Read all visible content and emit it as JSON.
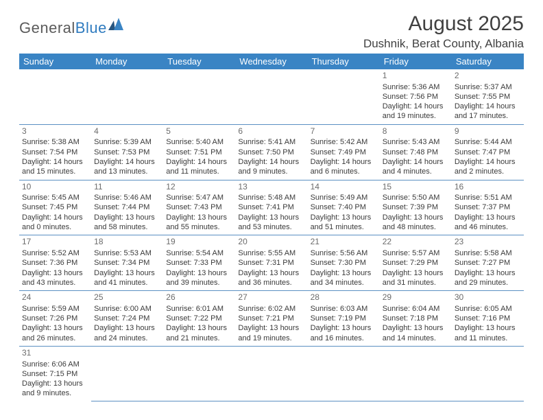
{
  "logo": {
    "text_gray": "General",
    "text_blue": "Blue"
  },
  "title": "August 2025",
  "subtitle": "Dushnik, Berat County, Albania",
  "colors": {
    "header_bg": "#3a84c4",
    "header_text": "#ffffff",
    "row_border": "#5a8fc2",
    "text": "#3a3a3a",
    "title_text": "#404040",
    "logo_gray": "#5b5b5b",
    "logo_blue": "#2f7bbf",
    "background": "#ffffff"
  },
  "typography": {
    "title_fontsize": 30,
    "subtitle_fontsize": 17,
    "header_fontsize": 13,
    "cell_fontsize": 11,
    "daynum_fontsize": 12,
    "logo_fontsize": 22
  },
  "day_headers": [
    "Sunday",
    "Monday",
    "Tuesday",
    "Wednesday",
    "Thursday",
    "Friday",
    "Saturday"
  ],
  "weeks": [
    [
      null,
      null,
      null,
      null,
      null,
      {
        "n": "1",
        "sunrise": "5:36 AM",
        "sunset": "7:56 PM",
        "daylight": "14 hours and 19 minutes."
      },
      {
        "n": "2",
        "sunrise": "5:37 AM",
        "sunset": "7:55 PM",
        "daylight": "14 hours and 17 minutes."
      }
    ],
    [
      {
        "n": "3",
        "sunrise": "5:38 AM",
        "sunset": "7:54 PM",
        "daylight": "14 hours and 15 minutes."
      },
      {
        "n": "4",
        "sunrise": "5:39 AM",
        "sunset": "7:53 PM",
        "daylight": "14 hours and 13 minutes."
      },
      {
        "n": "5",
        "sunrise": "5:40 AM",
        "sunset": "7:51 PM",
        "daylight": "14 hours and 11 minutes."
      },
      {
        "n": "6",
        "sunrise": "5:41 AM",
        "sunset": "7:50 PM",
        "daylight": "14 hours and 9 minutes."
      },
      {
        "n": "7",
        "sunrise": "5:42 AM",
        "sunset": "7:49 PM",
        "daylight": "14 hours and 6 minutes."
      },
      {
        "n": "8",
        "sunrise": "5:43 AM",
        "sunset": "7:48 PM",
        "daylight": "14 hours and 4 minutes."
      },
      {
        "n": "9",
        "sunrise": "5:44 AM",
        "sunset": "7:47 PM",
        "daylight": "14 hours and 2 minutes."
      }
    ],
    [
      {
        "n": "10",
        "sunrise": "5:45 AM",
        "sunset": "7:45 PM",
        "daylight": "14 hours and 0 minutes."
      },
      {
        "n": "11",
        "sunrise": "5:46 AM",
        "sunset": "7:44 PM",
        "daylight": "13 hours and 58 minutes."
      },
      {
        "n": "12",
        "sunrise": "5:47 AM",
        "sunset": "7:43 PM",
        "daylight": "13 hours and 55 minutes."
      },
      {
        "n": "13",
        "sunrise": "5:48 AM",
        "sunset": "7:41 PM",
        "daylight": "13 hours and 53 minutes."
      },
      {
        "n": "14",
        "sunrise": "5:49 AM",
        "sunset": "7:40 PM",
        "daylight": "13 hours and 51 minutes."
      },
      {
        "n": "15",
        "sunrise": "5:50 AM",
        "sunset": "7:39 PM",
        "daylight": "13 hours and 48 minutes."
      },
      {
        "n": "16",
        "sunrise": "5:51 AM",
        "sunset": "7:37 PM",
        "daylight": "13 hours and 46 minutes."
      }
    ],
    [
      {
        "n": "17",
        "sunrise": "5:52 AM",
        "sunset": "7:36 PM",
        "daylight": "13 hours and 43 minutes."
      },
      {
        "n": "18",
        "sunrise": "5:53 AM",
        "sunset": "7:34 PM",
        "daylight": "13 hours and 41 minutes."
      },
      {
        "n": "19",
        "sunrise": "5:54 AM",
        "sunset": "7:33 PM",
        "daylight": "13 hours and 39 minutes."
      },
      {
        "n": "20",
        "sunrise": "5:55 AM",
        "sunset": "7:31 PM",
        "daylight": "13 hours and 36 minutes."
      },
      {
        "n": "21",
        "sunrise": "5:56 AM",
        "sunset": "7:30 PM",
        "daylight": "13 hours and 34 minutes."
      },
      {
        "n": "22",
        "sunrise": "5:57 AM",
        "sunset": "7:29 PM",
        "daylight": "13 hours and 31 minutes."
      },
      {
        "n": "23",
        "sunrise": "5:58 AM",
        "sunset": "7:27 PM",
        "daylight": "13 hours and 29 minutes."
      }
    ],
    [
      {
        "n": "24",
        "sunrise": "5:59 AM",
        "sunset": "7:26 PM",
        "daylight": "13 hours and 26 minutes."
      },
      {
        "n": "25",
        "sunrise": "6:00 AM",
        "sunset": "7:24 PM",
        "daylight": "13 hours and 24 minutes."
      },
      {
        "n": "26",
        "sunrise": "6:01 AM",
        "sunset": "7:22 PM",
        "daylight": "13 hours and 21 minutes."
      },
      {
        "n": "27",
        "sunrise": "6:02 AM",
        "sunset": "7:21 PM",
        "daylight": "13 hours and 19 minutes."
      },
      {
        "n": "28",
        "sunrise": "6:03 AM",
        "sunset": "7:19 PM",
        "daylight": "13 hours and 16 minutes."
      },
      {
        "n": "29",
        "sunrise": "6:04 AM",
        "sunset": "7:18 PM",
        "daylight": "13 hours and 14 minutes."
      },
      {
        "n": "30",
        "sunrise": "6:05 AM",
        "sunset": "7:16 PM",
        "daylight": "13 hours and 11 minutes."
      }
    ],
    [
      {
        "n": "31",
        "sunrise": "6:06 AM",
        "sunset": "7:15 PM",
        "daylight": "13 hours and 9 minutes."
      },
      null,
      null,
      null,
      null,
      null,
      null
    ]
  ],
  "labels": {
    "sunrise_prefix": "Sunrise: ",
    "sunset_prefix": "Sunset: ",
    "daylight_prefix": "Daylight: "
  }
}
